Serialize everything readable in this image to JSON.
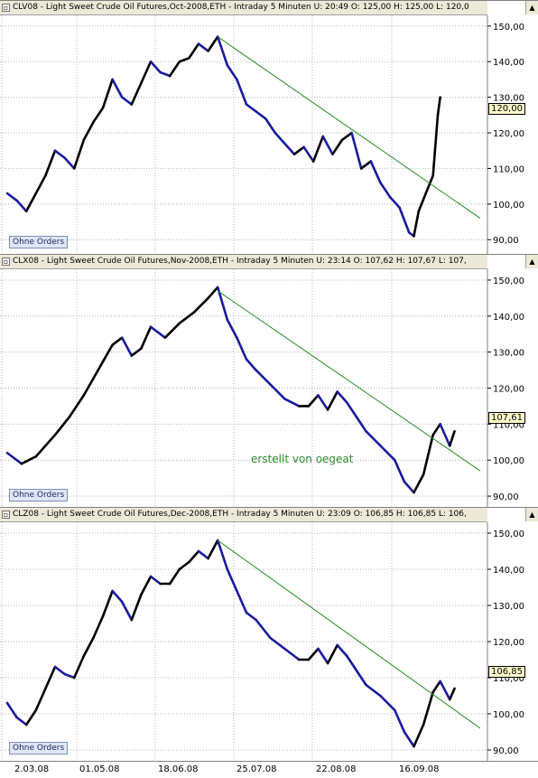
{
  "panels": [
    {
      "title": "CLV08 - Light Sweet Crude Oil Futures,Oct-2008,ETH - Intraday 5 Minuten  U: 20:49  O: 125,00  H: 125,00  L: 120,0",
      "orders_label": "Ohne Orders",
      "last_value": "120,00"
    },
    {
      "title": "CLX08 - Light Sweet Crude Oil Futures,Nov-2008,ETH - Intraday 5 Minuten  U: 23:14  O: 107,62  H: 107,67  L: 107,",
      "orders_label": "Ohne Orders",
      "last_value": "107,61"
    },
    {
      "title": "CLZ08 - Light Sweet Crude Oil Futures,Dec-2008,ETH - Intraday 5 Minuten  U: 23:09  O: 106,85  H: 106,85  L: 106,",
      "orders_label": "Ohne Orders",
      "last_value": "106,85"
    }
  ],
  "watermark": "erstellt von oegeat",
  "colors": {
    "price_up": "#000000",
    "price_down": "#1a1aa0",
    "trendline": "#1f8f1f",
    "grid": "#b4b4b4"
  },
  "chart_data": [
    {
      "type": "line",
      "title": "CLV08 - Light Sweet Crude Oil Futures,Oct-2008,ETH - Intraday 5 Minuten",
      "x": [
        "2.03.08",
        "01.05.08",
        "18.06.08",
        "25.07.08",
        "22.08.08",
        "16.09.08"
      ],
      "yticks": [
        "90,00",
        "100,00",
        "110,00",
        "120,00",
        "130,00",
        "140,00",
        "150,00"
      ],
      "ylim": [
        86,
        153
      ],
      "series": [
        {
          "points": [
            [
              0,
              103
            ],
            [
              0.02,
              101
            ],
            [
              0.04,
              98
            ],
            [
              0.06,
              103
            ],
            [
              0.08,
              108
            ],
            [
              0.1,
              115
            ],
            [
              0.12,
              113
            ],
            [
              0.14,
              110
            ],
            [
              0.16,
              118
            ],
            [
              0.18,
              123
            ],
            [
              0.2,
              127
            ],
            [
              0.22,
              135
            ],
            [
              0.24,
              130
            ],
            [
              0.26,
              128
            ],
            [
              0.28,
              134
            ],
            [
              0.3,
              140
            ],
            [
              0.32,
              137
            ],
            [
              0.34,
              136
            ],
            [
              0.36,
              140
            ],
            [
              0.38,
              141
            ],
            [
              0.4,
              145
            ],
            [
              0.42,
              143
            ],
            [
              0.44,
              147
            ],
            [
              0.46,
              139
            ],
            [
              0.48,
              135
            ],
            [
              0.5,
              128
            ],
            [
              0.52,
              126
            ],
            [
              0.54,
              124
            ],
            [
              0.56,
              120
            ],
            [
              0.58,
              117
            ],
            [
              0.6,
              114
            ],
            [
              0.62,
              116
            ],
            [
              0.64,
              112
            ],
            [
              0.66,
              119
            ],
            [
              0.68,
              114
            ],
            [
              0.7,
              118
            ],
            [
              0.72,
              120
            ],
            [
              0.74,
              110
            ],
            [
              0.76,
              112
            ],
            [
              0.78,
              106
            ],
            [
              0.8,
              102
            ],
            [
              0.82,
              99
            ],
            [
              0.84,
              92
            ],
            [
              0.85,
              91
            ],
            [
              0.86,
              98
            ],
            [
              0.875,
              103
            ],
            [
              0.89,
              108
            ],
            [
              0.9,
              125
            ],
            [
              0.905,
              130
            ]
          ]
        }
      ],
      "trendline": [
        [
          0.44,
          147
        ],
        [
          1.0,
          96
        ]
      ]
    },
    {
      "type": "line",
      "title": "CLX08 - Light Sweet Crude Oil Futures,Nov-2008,ETH - Intraday 5 Minuten",
      "x": [
        "2.03.08",
        "01.05.08",
        "18.06.08",
        "25.07.08",
        "22.08.08",
        "16.09.08"
      ],
      "yticks": [
        "90,00",
        "100,00",
        "110,00",
        "120,00",
        "130,00",
        "140,00",
        "150,00"
      ],
      "ylim": [
        87,
        153
      ],
      "series": [
        {
          "points": [
            [
              0,
              102
            ],
            [
              0.03,
              99
            ],
            [
              0.06,
              101
            ],
            [
              0.08,
              104
            ],
            [
              0.1,
              107
            ],
            [
              0.13,
              112
            ],
            [
              0.16,
              118
            ],
            [
              0.19,
              125
            ],
            [
              0.22,
              132
            ],
            [
              0.24,
              134
            ],
            [
              0.26,
              129
            ],
            [
              0.28,
              131
            ],
            [
              0.3,
              137
            ],
            [
              0.33,
              134
            ],
            [
              0.36,
              138
            ],
            [
              0.39,
              141
            ],
            [
              0.42,
              145
            ],
            [
              0.44,
              148
            ],
            [
              0.46,
              139
            ],
            [
              0.48,
              134
            ],
            [
              0.5,
              128
            ],
            [
              0.52,
              125
            ],
            [
              0.55,
              121
            ],
            [
              0.58,
              117
            ],
            [
              0.61,
              115
            ],
            [
              0.63,
              115
            ],
            [
              0.65,
              118
            ],
            [
              0.67,
              114
            ],
            [
              0.69,
              119
            ],
            [
              0.71,
              116
            ],
            [
              0.73,
              112
            ],
            [
              0.75,
              108
            ],
            [
              0.78,
              104
            ],
            [
              0.81,
              100
            ],
            [
              0.83,
              94
            ],
            [
              0.85,
              91
            ],
            [
              0.87,
              96
            ],
            [
              0.89,
              107
            ],
            [
              0.905,
              110
            ],
            [
              0.925,
              104
            ],
            [
              0.935,
              108
            ]
          ]
        }
      ],
      "trendline": [
        [
          0.44,
          147
        ],
        [
          1.0,
          97
        ]
      ]
    },
    {
      "type": "line",
      "title": "CLZ08 - Light Sweet Crude Oil Futures,Dec-2008,ETH - Intraday 5 Minuten",
      "x": [
        "2.03.08",
        "01.05.08",
        "18.06.08",
        "25.07.08",
        "22.08.08",
        "16.09.08"
      ],
      "yticks": [
        "90,00",
        "100,00",
        "110,00",
        "120,00",
        "130,00",
        "140,00",
        "150,00"
      ],
      "ylim": [
        87,
        153
      ],
      "series": [
        {
          "points": [
            [
              0,
              103
            ],
            [
              0.02,
              99
            ],
            [
              0.04,
              97
            ],
            [
              0.06,
              101
            ],
            [
              0.08,
              107
            ],
            [
              0.1,
              113
            ],
            [
              0.12,
              111
            ],
            [
              0.14,
              110
            ],
            [
              0.16,
              116
            ],
            [
              0.18,
              121
            ],
            [
              0.2,
              127
            ],
            [
              0.22,
              134
            ],
            [
              0.24,
              131
            ],
            [
              0.26,
              126
            ],
            [
              0.28,
              133
            ],
            [
              0.3,
              138
            ],
            [
              0.32,
              136
            ],
            [
              0.34,
              136
            ],
            [
              0.36,
              140
            ],
            [
              0.38,
              142
            ],
            [
              0.4,
              145
            ],
            [
              0.42,
              143
            ],
            [
              0.44,
              148
            ],
            [
              0.46,
              140
            ],
            [
              0.48,
              134
            ],
            [
              0.5,
              128
            ],
            [
              0.52,
              126
            ],
            [
              0.55,
              121
            ],
            [
              0.58,
              118
            ],
            [
              0.61,
              115
            ],
            [
              0.63,
              115
            ],
            [
              0.65,
              118
            ],
            [
              0.67,
              114
            ],
            [
              0.69,
              119
            ],
            [
              0.71,
              116
            ],
            [
              0.73,
              112
            ],
            [
              0.75,
              108
            ],
            [
              0.78,
              105
            ],
            [
              0.81,
              101
            ],
            [
              0.83,
              95
            ],
            [
              0.85,
              91
            ],
            [
              0.87,
              97
            ],
            [
              0.89,
              106
            ],
            [
              0.905,
              109
            ],
            [
              0.925,
              104
            ],
            [
              0.935,
              107
            ]
          ]
        }
      ],
      "trendline": [
        [
          0.44,
          148
        ],
        [
          1.0,
          96
        ]
      ]
    }
  ],
  "xaxis_labels": [
    "2.03.08",
    "01.05.08",
    "18.06.08",
    "25.07.08",
    "22.08.08",
    "16.09.08"
  ]
}
